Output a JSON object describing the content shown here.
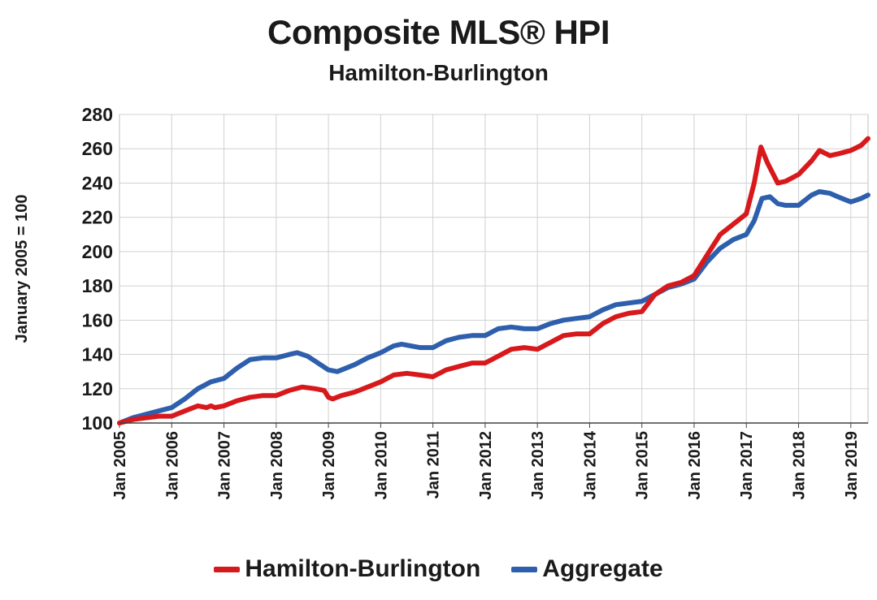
{
  "chart_data": {
    "type": "line",
    "title": "Composite MLS® HPI",
    "subtitle": "Hamilton-Burlington",
    "xlabel": "",
    "ylabel": "January 2005 = 100",
    "ylim": [
      100,
      280
    ],
    "yticks": [
      100,
      120,
      140,
      160,
      180,
      200,
      220,
      240,
      260,
      280
    ],
    "xlim": [
      2005,
      2019.33
    ],
    "xticks": [
      "Jan 2005",
      "Jan 2006",
      "Jan 2007",
      "Jan 2008",
      "Jan 2009",
      "Jan 2010",
      "Jan 2011",
      "Jan 2012",
      "Jan 2013",
      "Jan 2014",
      "Jan 2015",
      "Jan 2016",
      "Jan 2017",
      "Jan 2018",
      "Jan 2019"
    ],
    "grid": true,
    "legend_position": "bottom",
    "series": [
      {
        "name": "Hamilton-Burlington",
        "color": "#d7191c",
        "points": [
          [
            2005.0,
            100
          ],
          [
            2005.25,
            102
          ],
          [
            2005.5,
            103
          ],
          [
            2005.75,
            104
          ],
          [
            2006.0,
            104
          ],
          [
            2006.25,
            107
          ],
          [
            2006.5,
            110
          ],
          [
            2006.67,
            109
          ],
          [
            2006.75,
            110
          ],
          [
            2006.83,
            109
          ],
          [
            2007.0,
            110
          ],
          [
            2007.25,
            113
          ],
          [
            2007.5,
            115
          ],
          [
            2007.75,
            116
          ],
          [
            2008.0,
            116
          ],
          [
            2008.25,
            119
          ],
          [
            2008.5,
            121
          ],
          [
            2008.75,
            120
          ],
          [
            2008.92,
            119
          ],
          [
            2009.0,
            115
          ],
          [
            2009.08,
            114
          ],
          [
            2009.25,
            116
          ],
          [
            2009.5,
            118
          ],
          [
            2009.75,
            121
          ],
          [
            2010.0,
            124
          ],
          [
            2010.25,
            128
          ],
          [
            2010.5,
            129
          ],
          [
            2010.75,
            128
          ],
          [
            2011.0,
            127
          ],
          [
            2011.25,
            131
          ],
          [
            2011.5,
            133
          ],
          [
            2011.75,
            135
          ],
          [
            2012.0,
            135
          ],
          [
            2012.25,
            139
          ],
          [
            2012.5,
            143
          ],
          [
            2012.75,
            144
          ],
          [
            2013.0,
            143
          ],
          [
            2013.25,
            147
          ],
          [
            2013.5,
            151
          ],
          [
            2013.75,
            152
          ],
          [
            2014.0,
            152
          ],
          [
            2014.25,
            158
          ],
          [
            2014.5,
            162
          ],
          [
            2014.75,
            164
          ],
          [
            2015.0,
            165
          ],
          [
            2015.25,
            175
          ],
          [
            2015.5,
            180
          ],
          [
            2015.75,
            182
          ],
          [
            2016.0,
            186
          ],
          [
            2016.25,
            198
          ],
          [
            2016.5,
            210
          ],
          [
            2016.75,
            216
          ],
          [
            2017.0,
            222
          ],
          [
            2017.15,
            240
          ],
          [
            2017.28,
            261
          ],
          [
            2017.4,
            252
          ],
          [
            2017.6,
            240
          ],
          [
            2017.75,
            241
          ],
          [
            2018.0,
            245
          ],
          [
            2018.25,
            253
          ],
          [
            2018.4,
            259
          ],
          [
            2018.6,
            256
          ],
          [
            2018.75,
            257
          ],
          [
            2019.0,
            259
          ],
          [
            2019.2,
            262
          ],
          [
            2019.33,
            266
          ]
        ]
      },
      {
        "name": "Aggregate",
        "color": "#2e5fad",
        "points": [
          [
            2005.0,
            100
          ],
          [
            2005.25,
            103
          ],
          [
            2005.5,
            105
          ],
          [
            2005.75,
            107
          ],
          [
            2006.0,
            109
          ],
          [
            2006.25,
            114
          ],
          [
            2006.5,
            120
          ],
          [
            2006.75,
            124
          ],
          [
            2007.0,
            126
          ],
          [
            2007.25,
            132
          ],
          [
            2007.5,
            137
          ],
          [
            2007.75,
            138
          ],
          [
            2008.0,
            138
          ],
          [
            2008.25,
            140
          ],
          [
            2008.4,
            141
          ],
          [
            2008.6,
            139
          ],
          [
            2008.75,
            136
          ],
          [
            2009.0,
            131
          ],
          [
            2009.17,
            130
          ],
          [
            2009.5,
            134
          ],
          [
            2009.75,
            138
          ],
          [
            2010.0,
            141
          ],
          [
            2010.25,
            145
          ],
          [
            2010.4,
            146
          ],
          [
            2010.75,
            144
          ],
          [
            2011.0,
            144
          ],
          [
            2011.25,
            148
          ],
          [
            2011.5,
            150
          ],
          [
            2011.75,
            151
          ],
          [
            2012.0,
            151
          ],
          [
            2012.25,
            155
          ],
          [
            2012.5,
            156
          ],
          [
            2012.75,
            155
          ],
          [
            2013.0,
            155
          ],
          [
            2013.25,
            158
          ],
          [
            2013.5,
            160
          ],
          [
            2013.75,
            161
          ],
          [
            2014.0,
            162
          ],
          [
            2014.25,
            166
          ],
          [
            2014.5,
            169
          ],
          [
            2014.75,
            170
          ],
          [
            2015.0,
            171
          ],
          [
            2015.25,
            175
          ],
          [
            2015.5,
            179
          ],
          [
            2015.75,
            181
          ],
          [
            2016.0,
            184
          ],
          [
            2016.25,
            194
          ],
          [
            2016.5,
            202
          ],
          [
            2016.75,
            207
          ],
          [
            2017.0,
            210
          ],
          [
            2017.15,
            218
          ],
          [
            2017.3,
            231
          ],
          [
            2017.45,
            232
          ],
          [
            2017.6,
            228
          ],
          [
            2017.75,
            227
          ],
          [
            2018.0,
            227
          ],
          [
            2018.25,
            233
          ],
          [
            2018.4,
            235
          ],
          [
            2018.6,
            234
          ],
          [
            2018.75,
            232
          ],
          [
            2019.0,
            229
          ],
          [
            2019.2,
            231
          ],
          [
            2019.33,
            233
          ]
        ]
      }
    ]
  }
}
